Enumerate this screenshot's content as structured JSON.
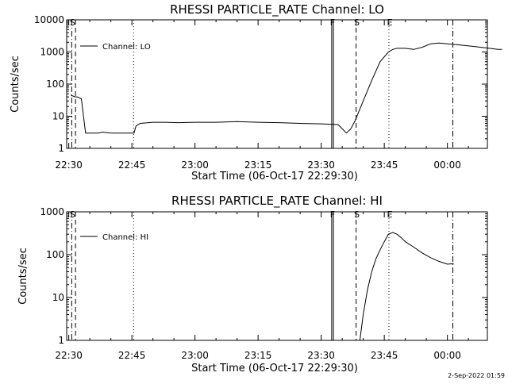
{
  "chart_data": [
    {
      "type": "line",
      "title": "RHESSI PARTICLE_RATE Channel: LO",
      "xlabel": "Start Time (06-Oct-17 22:29:30)",
      "ylabel": "Counts/sec",
      "yscale": "log",
      "ylim": [
        1,
        10000
      ],
      "ytick_labels": [
        "1",
        "10",
        "100",
        "1000",
        "10000"
      ],
      "ytick_values": [
        1,
        10,
        100,
        1000,
        10000
      ],
      "xlim": [
        "22:29:30",
        "00:09:30"
      ],
      "xtick_labels": [
        "22:30",
        "22:45",
        "23:00",
        "23:15",
        "23:30",
        "23:45",
        "00:00"
      ],
      "xtick_minutes": [
        30,
        45,
        60,
        75,
        90,
        105,
        120
      ],
      "legend": {
        "location": "top-left",
        "entries": [
          "Channel: LO"
        ]
      },
      "series": [
        {
          "name": "Channel: LO",
          "x": [
            30.5,
            31.5,
            32,
            33,
            34,
            35,
            36,
            37,
            38,
            40,
            42,
            44,
            45.5,
            46,
            47,
            50,
            53,
            56,
            60,
            65,
            70,
            75,
            80,
            85,
            90,
            94,
            96,
            97,
            98,
            100,
            102,
            104,
            106,
            107,
            108,
            110,
            112,
            114,
            116,
            118,
            120,
            122,
            124,
            126,
            128,
            130,
            132,
            133
          ],
          "y": [
            45,
            40,
            40,
            35,
            3,
            3,
            3,
            3,
            3.2,
            3,
            3,
            3,
            3,
            5,
            6,
            6.5,
            6.5,
            6.3,
            6.5,
            6.5,
            6.8,
            6.5,
            6.3,
            6,
            5.8,
            5.5,
            3,
            4,
            7,
            30,
            130,
            500,
            1000,
            1200,
            1300,
            1300,
            1200,
            1400,
            1800,
            1900,
            1800,
            1700,
            1600,
            1500,
            1400,
            1300,
            1200,
            1200
          ]
        }
      ],
      "markers": [
        {
          "label": "S",
          "minute": 30.7,
          "style": "dash-dot"
        },
        {
          "label": "",
          "minute": 31.6,
          "style": "dashed"
        },
        {
          "label": "",
          "minute": 45.4,
          "style": "dotted"
        },
        {
          "label": "F",
          "minute": 92.5,
          "style": "solid"
        },
        {
          "label": "",
          "minute": 92.9,
          "style": "solid"
        },
        {
          "label": "S",
          "minute": 98.3,
          "style": "dashed"
        },
        {
          "label": "E",
          "minute": 106.1,
          "style": "dotted"
        },
        {
          "label": "",
          "minute": 121.3,
          "style": "dash-dot"
        }
      ]
    },
    {
      "type": "line",
      "title": "RHESSI PARTICLE_RATE Channel: HI",
      "xlabel": "Start Time (06-Oct-17 22:29:30)",
      "ylabel": "Counts/sec",
      "yscale": "log",
      "ylim": [
        1,
        1000
      ],
      "ytick_labels": [
        "1",
        "10",
        "100",
        "1000"
      ],
      "ytick_values": [
        1,
        10,
        100,
        1000
      ],
      "xlim": [
        "22:29:30",
        "00:09:30"
      ],
      "xtick_labels": [
        "22:30",
        "22:45",
        "23:00",
        "23:15",
        "23:30",
        "23:45",
        "00:00"
      ],
      "xtick_minutes": [
        30,
        45,
        60,
        75,
        90,
        105,
        120
      ],
      "legend": {
        "location": "top-left",
        "entries": [
          "Channel: HI"
        ]
      },
      "series": [
        {
          "name": "Channel: HI",
          "x": [
            99.2,
            100,
            101,
            102,
            103,
            104,
            105,
            106,
            107,
            108,
            109,
            110,
            112,
            114,
            116,
            118,
            120,
            121.5
          ],
          "y": [
            1,
            4,
            15,
            40,
            80,
            130,
            200,
            300,
            330,
            300,
            250,
            200,
            150,
            110,
            85,
            70,
            60,
            62
          ]
        }
      ],
      "markers": [
        {
          "label": "S",
          "minute": 30.7,
          "style": "dash-dot"
        },
        {
          "label": "",
          "minute": 31.6,
          "style": "dashed"
        },
        {
          "label": "",
          "minute": 45.4,
          "style": "dotted"
        },
        {
          "label": "F",
          "minute": 92.5,
          "style": "solid"
        },
        {
          "label": "",
          "minute": 92.9,
          "style": "solid"
        },
        {
          "label": "S",
          "minute": 98.3,
          "style": "dashed"
        },
        {
          "label": "E",
          "minute": 106.1,
          "style": "dotted"
        },
        {
          "label": "",
          "minute": 121.3,
          "style": "dash-dot"
        }
      ]
    }
  ],
  "footer": {
    "timestamp": "2-Sep-2022 01:59"
  }
}
